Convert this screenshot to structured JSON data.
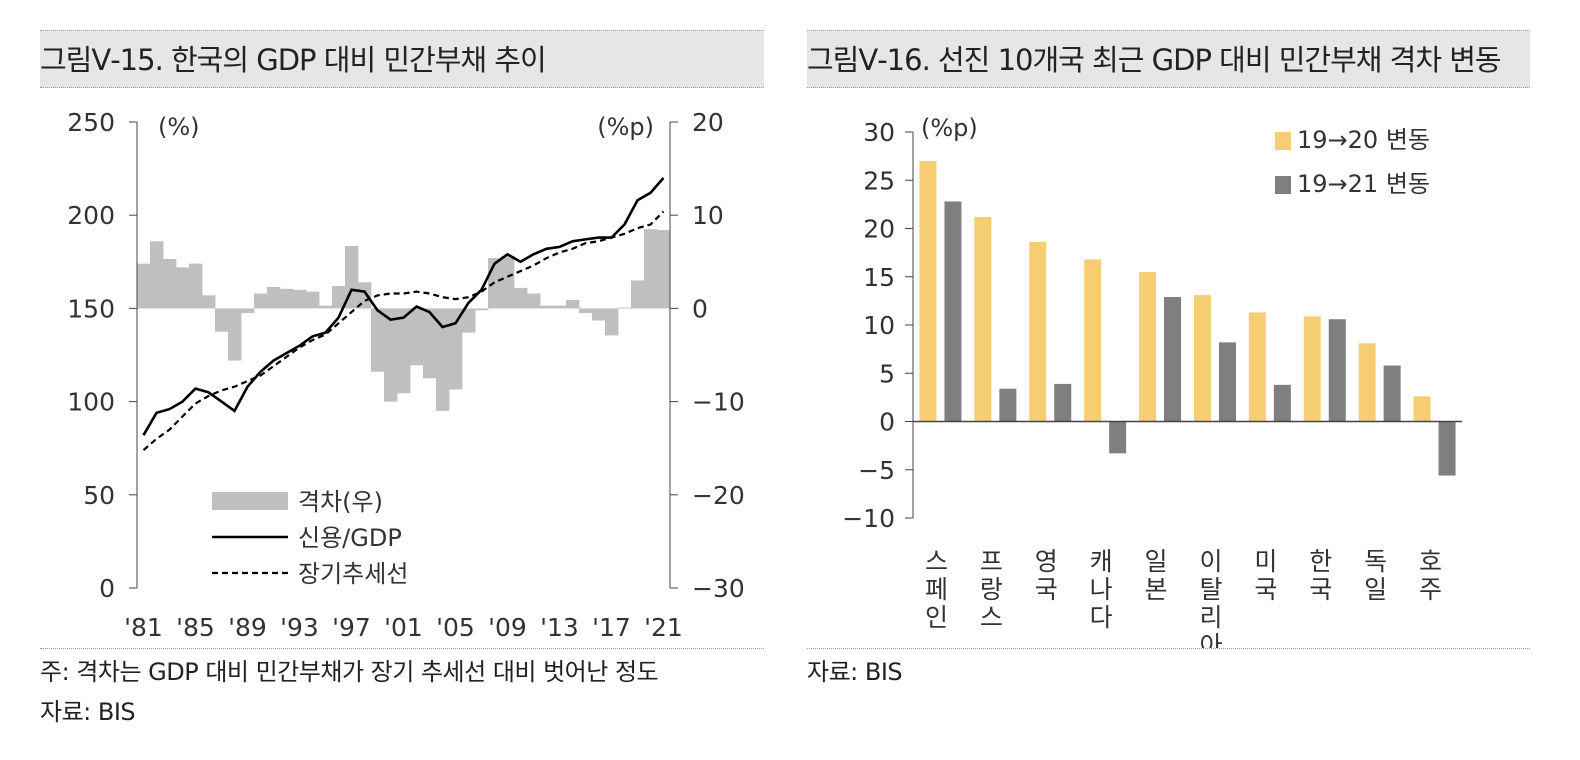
{
  "left_panel": {
    "title": "그림Ⅴ-15. 한국의 GDP 대비 민간부채 추이",
    "note": "주: 격차는 GDP 대비 민간부채가 장기 추세선 대비 벗어난 정도",
    "source": "자료: BIS"
  },
  "right_panel": {
    "title": "그림Ⅴ-16. 선진 10개국 최근 GDP 대비 민간부채 격차 변동",
    "source": "자료: BIS"
  },
  "chart_data": [
    {
      "type": "bar+line",
      "title": "한국의 GDP 대비 민간부채 추이",
      "left_axis": {
        "unit": "(%)",
        "ylim": [
          0,
          250
        ],
        "ticks": [
          "0",
          "50",
          "100",
          "150",
          "200",
          "250"
        ]
      },
      "right_axis": {
        "unit": "(%p)",
        "ylim": [
          -30,
          20
        ],
        "ticks": [
          "-30",
          "-20",
          "-10",
          "0",
          "10",
          "20"
        ]
      },
      "x_ticks": [
        "'81",
        "'85",
        "'89",
        "'93",
        "'97",
        "'01",
        "'05",
        "'09",
        "'13",
        "'17",
        "'21"
      ],
      "legend": [
        "격차(우)",
        "신용/GDP",
        "장기추세선"
      ],
      "legend_position": "bottom-left",
      "gap_series": {
        "name": "격차(우)",
        "axis": "right",
        "x": [
          1981,
          1982,
          1983,
          1984,
          1985,
          1986,
          1987,
          1988,
          1989,
          1990,
          1991,
          1992,
          1993,
          1994,
          1995,
          1996,
          1997,
          1998,
          1999,
          2000,
          2001,
          2002,
          2003,
          2004,
          2005,
          2006,
          2007,
          2008,
          2009,
          2010,
          2011,
          2012,
          2013,
          2014,
          2015,
          2016,
          2017,
          2018,
          2019,
          2020,
          2021
        ],
        "values": [
          4.8,
          7.2,
          5.3,
          4.4,
          4.8,
          1.4,
          -2.5,
          -5.6,
          -0.5,
          1.6,
          2.3,
          2.1,
          2.0,
          1.8,
          0.3,
          2.4,
          6.7,
          2.8,
          -6.8,
          -10.0,
          -9.1,
          -6.1,
          -7.5,
          -11.0,
          -8.7,
          -2.6,
          -0.2,
          5.4,
          5.6,
          2.2,
          1.6,
          0.3,
          0.3,
          0.9,
          -0.5,
          -1.3,
          -2.9,
          0.1,
          3.0,
          8.5,
          8.4
        ]
      },
      "credit_series": {
        "name": "신용/GDP",
        "axis": "left",
        "x": [
          1981,
          1982,
          1983,
          1984,
          1985,
          1986,
          1987,
          1988,
          1989,
          1990,
          1991,
          1992,
          1993,
          1994,
          1995,
          1996,
          1997,
          1998,
          1999,
          2000,
          2001,
          2002,
          2003,
          2004,
          2005,
          2006,
          2007,
          2008,
          2009,
          2010,
          2011,
          2012,
          2013,
          2014,
          2015,
          2016,
          2017,
          2018,
          2019,
          2020,
          2021
        ],
        "values": [
          82,
          94,
          96,
          100,
          107,
          105,
          100,
          95,
          108,
          116,
          122,
          126,
          130,
          135,
          137,
          145,
          160,
          159,
          149,
          144,
          145,
          151,
          148,
          140,
          142,
          153,
          160,
          174,
          179,
          175,
          179,
          182,
          183,
          186,
          187,
          188,
          188,
          195,
          208,
          212,
          220
        ]
      },
      "trend_series": {
        "name": "장기추세선",
        "axis": "left",
        "x": [
          1981,
          1982,
          1983,
          1984,
          1985,
          1986,
          1987,
          1988,
          1989,
          1990,
          1991,
          1992,
          1993,
          1994,
          1995,
          1996,
          1997,
          1998,
          1999,
          2000,
          2001,
          2002,
          2003,
          2004,
          2005,
          2006,
          2007,
          2008,
          2009,
          2010,
          2011,
          2012,
          2013,
          2014,
          2015,
          2016,
          2017,
          2018,
          2019,
          2020,
          2021
        ],
        "values": [
          74,
          80,
          85,
          92,
          99,
          103,
          106,
          108,
          111,
          114,
          119,
          124,
          129,
          133,
          136,
          142,
          148,
          154,
          157,
          158,
          158,
          159,
          158,
          156,
          155,
          156,
          159,
          164,
          167,
          170,
          173,
          177,
          180,
          182,
          185,
          186,
          188,
          190,
          193,
          195,
          202
        ]
      }
    },
    {
      "type": "bar",
      "title": "선진 10개국 최근 GDP 대비 민간부채 격차 변동",
      "unit": "(%p)",
      "ylim": [
        -10,
        30
      ],
      "ticks": [
        "−10",
        "−5",
        "0",
        "5",
        "10",
        "15",
        "20",
        "25",
        "30"
      ],
      "categories": [
        "스페인",
        "프랑스",
        "영국",
        "캐나다",
        "일본",
        "이탈리아",
        "미국",
        "한국",
        "독일",
        "호주"
      ],
      "series": [
        {
          "name": "19→20 변동",
          "color": "#f6cd72",
          "values": [
            27.0,
            21.2,
            18.6,
            16.8,
            15.5,
            13.1,
            11.3,
            10.9,
            8.1,
            2.6
          ]
        },
        {
          "name": "19→21 변동",
          "color": "#7f7f7f",
          "values": [
            22.8,
            3.4,
            3.9,
            -3.3,
            12.9,
            8.2,
            3.8,
            10.6,
            5.8,
            -5.6
          ]
        }
      ],
      "legend_position": "top-right"
    }
  ],
  "colors": {
    "gap_bar": "#bfbfbf",
    "line": "#000000",
    "axis": "#444444"
  }
}
